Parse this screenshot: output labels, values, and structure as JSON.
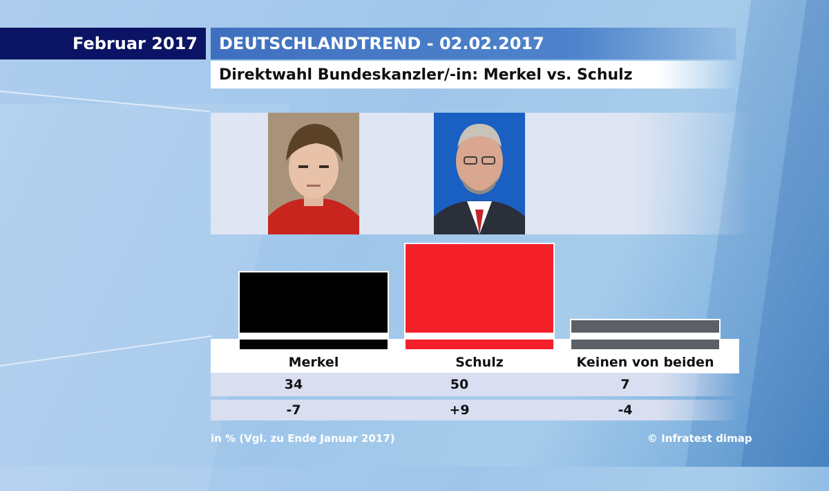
{
  "header": {
    "date_label": "Februar 2017",
    "trend_title": "DEUTSCHLANDTREND - 02.02.2017",
    "subtitle": "Direktwahl Bundeskanzler/-in: Merkel vs. Schulz"
  },
  "chart_data": {
    "type": "bar",
    "title": "Direktwahl Bundeskanzler/-in: Merkel vs. Schulz",
    "categories": [
      "Merkel",
      "Schulz",
      "Keinen von beiden"
    ],
    "values": [
      34,
      50,
      7
    ],
    "changes": [
      "-7",
      "+9",
      "-4"
    ],
    "colors": [
      "#000000",
      "#f4202a",
      "#5c5f66"
    ],
    "ylim": [
      0,
      50
    ],
    "unit_note": "in % (Vgl. zu Ende Januar 2017)"
  },
  "footer": {
    "note": "in % (Vgl. zu Ende Januar 2017)",
    "source": "© Infratest dimap"
  }
}
